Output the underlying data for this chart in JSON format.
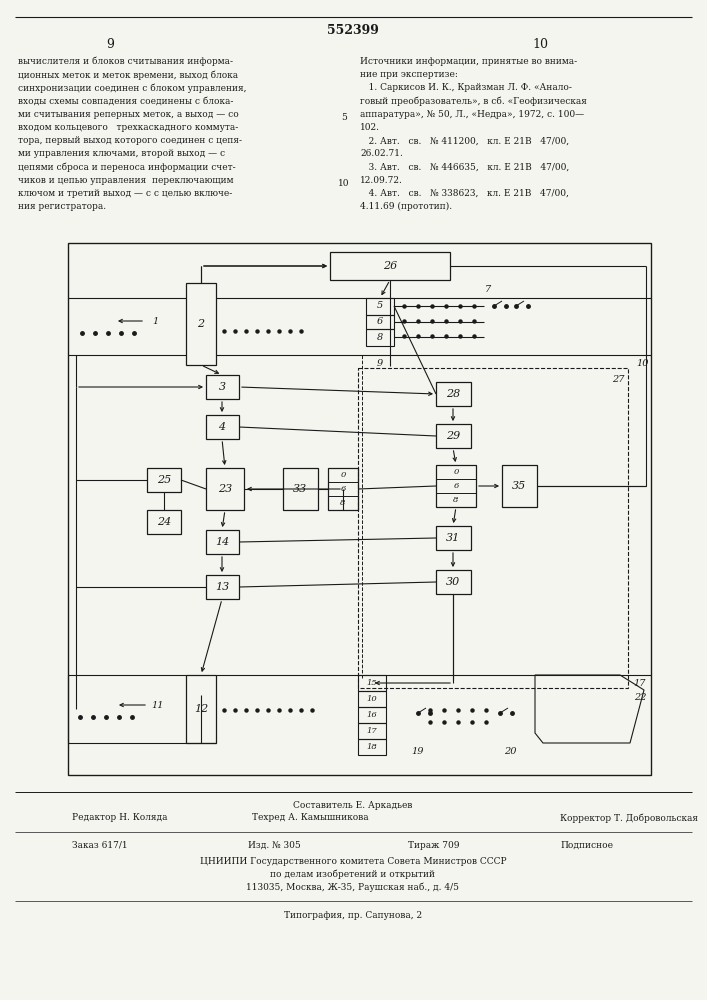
{
  "page_number_center": "552399",
  "page_left": "9",
  "page_right": "10",
  "left_text": [
    "вычислителя и блоков считывания информа-",
    "ционных меток и меток времени, выход блока",
    "синхронизации соединен с блоком управления,",
    "входы схемы совпадения соединены с блока-",
    "ми считывания реперных меток, а выход — со",
    "входом кольцевого   трехкаскадного коммута-",
    "тора, первый выход которого соединен с цепя-",
    "ми управления ключами, второй выход — с",
    "цепями сброса и переноса информации счет-",
    "чиков и цепью управления  переключающим",
    "ключом и третий выход — с с целью включе-",
    "ния регистратора."
  ],
  "right_text": [
    "Источники информации, принятые во внима-",
    "ние при экспертизе:",
    "   1. Саркисов И. К., Крайзман Л. Ф. «Анало-",
    "говый преобразователь», в сб. «Геофизическая",
    "аппаратура», № 50, Л., «Недра», 1972, с. 100—",
    "102.",
    "   2. Авт.   св.   № 411200,   кл. Е 21В   47/00,",
    "26.02.71.",
    "   3. Авт.   св.   № 446635,   кл. Е 21В   47/00,",
    "12.09.72.",
    "   4. Авт.   св.   № 338623,   кл. Е 21В   47/00,",
    "4.11.69 (прототип)."
  ],
  "footer_composer": "Составитель Е. Аркадьев",
  "footer_editor": "Редактор Н. Коляда",
  "footer_tech": "Техред А. Камышникова",
  "footer_corrector": "Корректор Т. Добровольская",
  "footer_order": "Заказ 617/1",
  "footer_issue": "Изд. № 305",
  "footer_print": "Тираж 709",
  "footer_subscription": "Подписное",
  "footer_org": "ЦНИИПИ Государственного комитета Совета Министров СССР",
  "footer_org2": "по делам изобретений и открытий",
  "footer_address": "113035, Москва, Ж-35, Раушская наб., д. 4/5",
  "footer_print_house": "Типография, пр. Сапунова, 2",
  "bg_color": "#f5f5f0",
  "text_color": "#1a1a1a",
  "line_color": "#1a1a1a"
}
